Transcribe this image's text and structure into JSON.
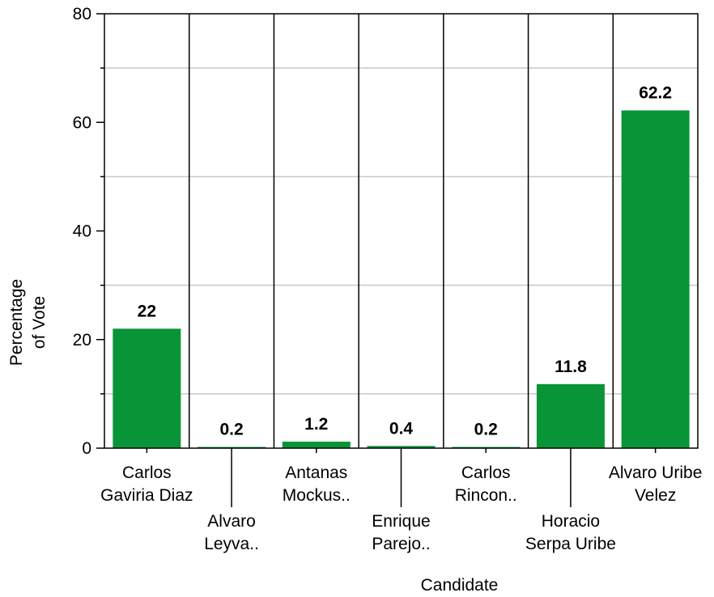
{
  "chart_data": {
    "type": "bar",
    "categories": [
      [
        "Carlos",
        "Gaviria Diaz"
      ],
      [
        "Alvaro",
        "Leyva.."
      ],
      [
        "Antanas",
        "Mockus.."
      ],
      [
        "Enrique",
        "Parejo.."
      ],
      [
        "Carlos",
        "Rincon.."
      ],
      [
        "Horacio",
        "Serpa Uribe"
      ],
      [
        "Alvaro Uribe",
        "Velez"
      ]
    ],
    "values": [
      22,
      0.2,
      1.2,
      0.4,
      0.2,
      11.8,
      62.2
    ],
    "data_labels": [
      "22",
      "0.2",
      "1.2",
      "0.4",
      "0.2",
      "11.8",
      "62.2"
    ],
    "title": "",
    "xlabel": "Candidate",
    "ylabel": [
      "Percentage",
      "of Vote"
    ],
    "ylim": [
      0,
      80
    ],
    "yticks": [
      0,
      20,
      40,
      60,
      80
    ],
    "y_minor_gridlines": [
      10,
      30,
      50,
      70
    ],
    "bar_color": "#0a9438",
    "grid": true,
    "legend": "none"
  }
}
